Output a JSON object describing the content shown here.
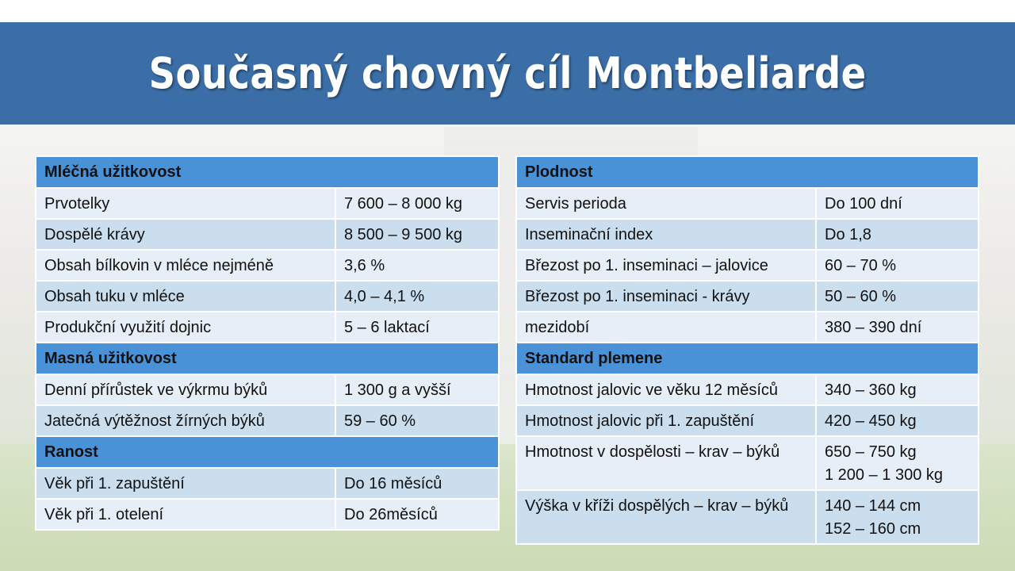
{
  "title": "Současný chovný cíl Montbeliarde",
  "left": {
    "milk": {
      "header": "Mléčná užitkovost",
      "rows": [
        {
          "k": "Prvotelky",
          "v": "7 600 – 8 000 kg"
        },
        {
          "k": "Dospělé krávy",
          "v": "8 500 – 9 500 kg"
        },
        {
          "k": "Obsah bílkovin v mléce nejméně",
          "v": "3,6 %"
        },
        {
          "k": "Obsah tuku v mléce",
          "v": "4,0 – 4,1 %"
        },
        {
          "k": "Produkční využití dojnic",
          "v": "5 – 6 laktací"
        }
      ]
    },
    "meat": {
      "header": "Masná užitkovost",
      "rows": [
        {
          "k": "Denní přírůstek ve výkrmu býků",
          "v": "1 300 g a vyšší"
        },
        {
          "k": "Jatečná výtěžnost žírných býků",
          "v": "59 – 60 %"
        }
      ]
    },
    "early": {
      "header": "Ranost",
      "rows": [
        {
          "k": "Věk při 1. zapuštění",
          "v": "Do 16 měsíců"
        },
        {
          "k": "Věk při 1. otelení",
          "v": "Do 26měsíců"
        }
      ]
    }
  },
  "right": {
    "fert": {
      "header": "Plodnost",
      "rows": [
        {
          "k": "Servis perioda",
          "v": "Do 100 dní"
        },
        {
          "k": "Inseminační index",
          "v": "Do 1,8"
        },
        {
          "k": "Březost po 1. inseminaci – jalovice",
          "v": "60 – 70 %"
        },
        {
          "k": "Březost po 1. inseminaci - krávy",
          "v": "50 – 60 %"
        },
        {
          "k": "mezidobí",
          "v": "380 – 390 dní"
        }
      ]
    },
    "std": {
      "header": "Standard plemene",
      "rows": [
        {
          "k": "Hmotnost jalovic ve věku 12 měsíců",
          "v": "340 – 360 kg"
        },
        {
          "k": "Hmotnost jalovic při 1. zapuštění",
          "v": "420 – 450 kg"
        },
        {
          "k": "Hmotnost v dospělosti – krav – býků",
          "v": "650 – 750 kg",
          "v2": "1 200 – 1 300 kg"
        },
        {
          "k": "Výška v kříži dospělých – krav – býků",
          "v": "140 – 144 cm",
          "v2": "152 – 160 cm"
        }
      ]
    }
  }
}
